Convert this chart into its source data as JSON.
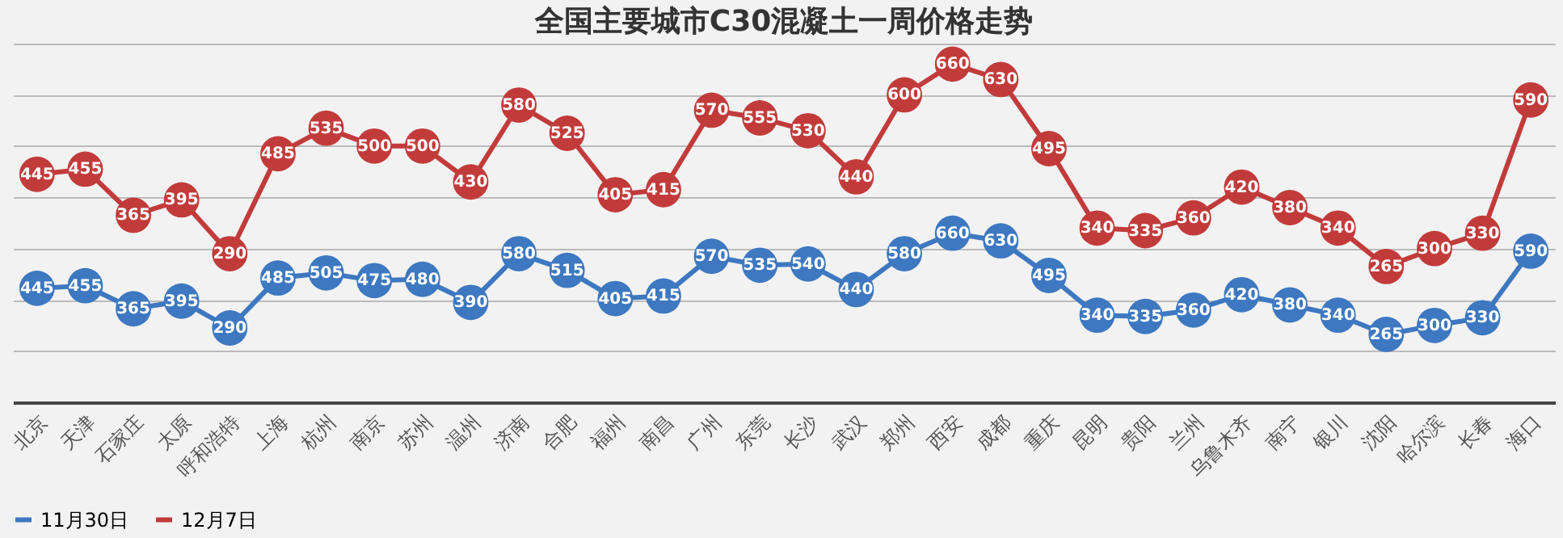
{
  "chart_data": {
    "type": "line",
    "title": "全国主要城市C30混凝土一周价格走势",
    "categories": [
      "北京",
      "天津",
      "石家庄",
      "太原",
      "呼和浩特",
      "上海",
      "杭州",
      "南京",
      "苏州",
      "温州",
      "济南",
      "合肥",
      "福州",
      "南昌",
      "广州",
      "东莞",
      "长沙",
      "武汉",
      "郑州",
      "西安",
      "成都",
      "重庆",
      "昆明",
      "贵阳",
      "兰州",
      "乌鲁木齐",
      "南宁",
      "银川",
      "沈阳",
      "哈尔滨",
      "长春",
      "海口"
    ],
    "series": [
      {
        "name": "11月30日",
        "color": "#3d78c0",
        "values": [
          445,
          455,
          365,
          395,
          290,
          485,
          505,
          475,
          480,
          390,
          580,
          515,
          405,
          415,
          570,
          535,
          540,
          440,
          580,
          660,
          630,
          495,
          340,
          335,
          360,
          420,
          380,
          340,
          265,
          300,
          330,
          590
        ]
      },
      {
        "name": "12月7日",
        "color": "#c23b3b",
        "axis": "y2",
        "values": [
          445,
          455,
          365,
          395,
          290,
          485,
          535,
          500,
          500,
          430,
          580,
          525,
          405,
          415,
          570,
          555,
          530,
          440,
          600,
          660,
          630,
          495,
          340,
          335,
          360,
          420,
          380,
          340,
          265,
          300,
          330,
          590
        ]
      }
    ],
    "ylim": [
      0,
      1400
    ],
    "yticks": [
      0,
      200,
      400,
      600,
      800,
      1000,
      1200,
      1400
    ],
    "y2lim": [
      0,
      700
    ],
    "y2ticks": [
      0,
      100,
      200,
      300,
      400,
      500,
      600,
      700
    ],
    "tick_labels": "x",
    "grid": "y",
    "legend": "bottom",
    "marker": "circle",
    "line_style": "solid",
    "data_labels": true
  }
}
